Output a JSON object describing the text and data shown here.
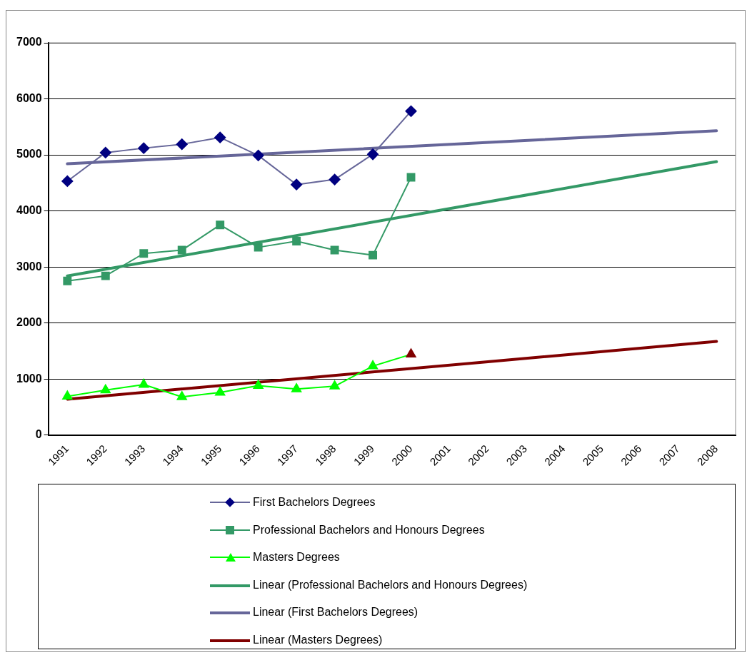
{
  "chart_data": {
    "type": "line",
    "categories": [
      "1991",
      "1992",
      "1993",
      "1994",
      "1995",
      "1996",
      "1997",
      "1998",
      "1999",
      "2000",
      "2001",
      "2002",
      "2003",
      "2004",
      "2005",
      "2006",
      "2007",
      "2008"
    ],
    "ylim": [
      0,
      7000
    ],
    "yticks": [
      0,
      1000,
      2000,
      3000,
      4000,
      5000,
      6000,
      7000
    ],
    "grid": "y",
    "legend": "bottom",
    "series": [
      {
        "name": "First Bachelors Degrees",
        "color": "#666699",
        "colors": [
          "#000080",
          "#000080",
          "#000080",
          "#000080",
          "#000080",
          "#000080",
          "#000080",
          "#000080",
          "#000080",
          "#000080",
          "#000080",
          "#000080",
          "#000080",
          "#000080",
          "#000080",
          "#000080",
          "#000080",
          "#000080"
        ],
        "marker": "diamond",
        "values": [
          4530,
          5040,
          5120,
          5190,
          5310,
          4990,
          4470,
          4560,
          5010,
          5780,
          null,
          null,
          null,
          null,
          null,
          null,
          null,
          null
        ]
      },
      {
        "name": "Professional Bachelors and Honours Degrees",
        "color": "#339966",
        "marker": "square",
        "values": [
          2750,
          2840,
          3240,
          3300,
          3750,
          3350,
          3460,
          3300,
          3210,
          4600,
          null,
          null,
          null,
          null,
          null,
          null,
          null,
          null
        ]
      },
      {
        "name": "Masters Degrees",
        "color": "#00ff00",
        "colors": [
          "#00ff00",
          "#00ff00",
          "#00ff00",
          "#00ff00",
          "#00ff00",
          "#00ff00",
          "#00ff00",
          "#00ff00",
          "#00ff00",
          "#800000",
          "#800000",
          "#800000",
          "#800000",
          "#800000",
          "#800000",
          "#800000",
          "#800000",
          "#800000"
        ],
        "marker": "triangle",
        "values": [
          690,
          800,
          900,
          680,
          760,
          880,
          820,
          870,
          1230,
          1440,
          null,
          null,
          null,
          null,
          null,
          null,
          null,
          null
        ]
      },
      {
        "name": "Linear (Professional Bachelors and Honours Degrees)",
        "color": "#339966",
        "marker": "none",
        "values": [
          2840,
          null,
          null,
          null,
          null,
          null,
          null,
          null,
          null,
          null,
          null,
          null,
          null,
          null,
          null,
          null,
          null,
          4880
        ]
      },
      {
        "name": "Linear (First Bachelors Degrees)",
        "color": "#666699",
        "marker": "none",
        "values": [
          4840,
          null,
          null,
          null,
          null,
          null,
          null,
          null,
          null,
          null,
          null,
          null,
          null,
          null,
          null,
          null,
          null,
          5430
        ]
      },
      {
        "name": "Linear (Masters Degrees)",
        "color": "#800000",
        "marker": "none",
        "values": [
          640,
          null,
          null,
          null,
          null,
          null,
          null,
          null,
          null,
          null,
          null,
          null,
          null,
          null,
          null,
          null,
          null,
          1670
        ]
      }
    ]
  }
}
